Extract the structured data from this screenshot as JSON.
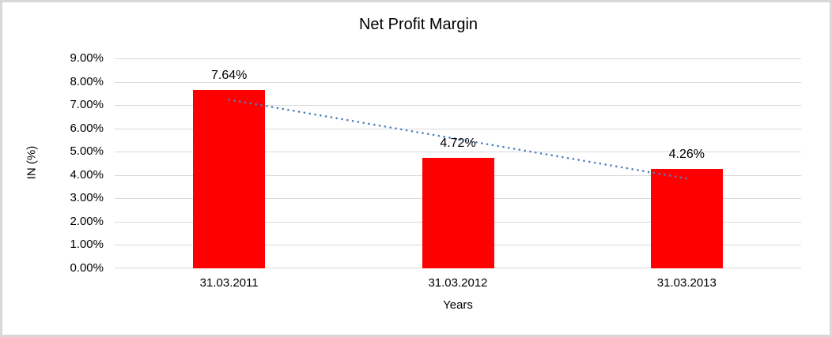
{
  "chart_data": {
    "type": "bar",
    "title": "Net Profit Margin",
    "xlabel": "Years",
    "ylabel": "IN (%)",
    "categories": [
      "31.03.2011",
      "31.03.2012",
      "31.03.2013"
    ],
    "values": [
      7.64,
      4.72,
      4.26
    ],
    "data_labels": [
      "7.64%",
      "4.72%",
      "4.26%"
    ],
    "ylim": [
      0,
      9
    ],
    "ytick_step": 1,
    "ytick_labels": [
      "0.00%",
      "1.00%",
      "2.00%",
      "3.00%",
      "4.00%",
      "5.00%",
      "6.00%",
      "7.00%",
      "8.00%",
      "9.00%"
    ],
    "grid": true,
    "legend": "none",
    "colors": {
      "bar": "#FF0000",
      "trendline": "#4F81BD",
      "gridline": "#D9D9D9",
      "text": "#000000",
      "background": "#FFFFFF",
      "frame_border": "#D8D8D8"
    },
    "trendline": {
      "type": "linear",
      "style": "dotted",
      "endpoint_values": [
        7.23,
        3.85
      ]
    }
  }
}
